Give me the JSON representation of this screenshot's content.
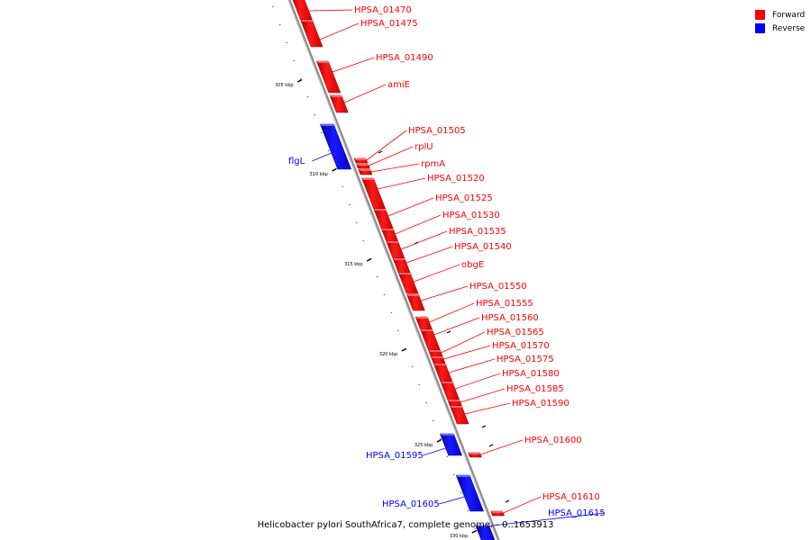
{
  "legend": {
    "forward": {
      "label": "Forward",
      "color": "#ff0000"
    },
    "reverse": {
      "label": "Reverse",
      "color": "#0000ff"
    }
  },
  "caption": "Helicobacter pylori SouthAfrica7, complete genome. - 0..1653913",
  "axis": {
    "unit": "kbp",
    "ticks": [
      "305 kbp",
      "310 kbp",
      "315 kbp",
      "320 kbp",
      "325 kbp",
      "330 kbp"
    ]
  },
  "genes": [
    {
      "name": "HPSA_01470",
      "strand": "forward"
    },
    {
      "name": "HPSA_01475",
      "strand": "forward"
    },
    {
      "name": "HPSA_01490",
      "strand": "forward"
    },
    {
      "name": "amiE",
      "strand": "forward"
    },
    {
      "name": "flgL",
      "strand": "reverse"
    },
    {
      "name": "HPSA_01505",
      "strand": "forward"
    },
    {
      "name": "rplU",
      "strand": "forward"
    },
    {
      "name": "rpmA",
      "strand": "forward"
    },
    {
      "name": "HPSA_01520",
      "strand": "forward"
    },
    {
      "name": "HPSA_01525",
      "strand": "forward"
    },
    {
      "name": "HPSA_01530",
      "strand": "forward"
    },
    {
      "name": "HPSA_01535",
      "strand": "forward"
    },
    {
      "name": "HPSA_01540",
      "strand": "forward"
    },
    {
      "name": "obgE",
      "strand": "forward"
    },
    {
      "name": "HPSA_01550",
      "strand": "forward"
    },
    {
      "name": "HPSA_01555",
      "strand": "forward"
    },
    {
      "name": "HPSA_01560",
      "strand": "forward"
    },
    {
      "name": "HPSA_01565",
      "strand": "forward"
    },
    {
      "name": "HPSA_01570",
      "strand": "forward"
    },
    {
      "name": "HPSA_01575",
      "strand": "forward"
    },
    {
      "name": "HPSA_01580",
      "strand": "forward"
    },
    {
      "name": "HPSA_01585",
      "strand": "forward"
    },
    {
      "name": "HPSA_01590",
      "strand": "forward"
    },
    {
      "name": "HPSA_01595",
      "strand": "reverse"
    },
    {
      "name": "HPSA_01600",
      "strand": "forward"
    },
    {
      "name": "HPSA_01605",
      "strand": "reverse"
    },
    {
      "name": "HPSA_01610",
      "strand": "forward"
    },
    {
      "name": "HPSA_01615",
      "strand": "reverse"
    }
  ]
}
